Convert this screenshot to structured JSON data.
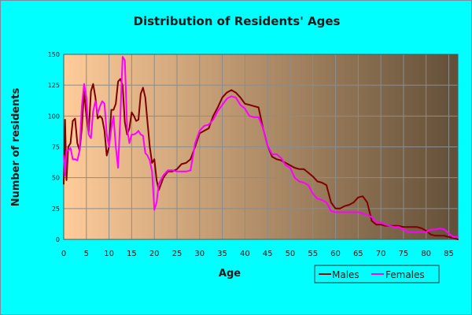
{
  "chart_data": {
    "type": "line",
    "title": "Distribution of Residents' Ages",
    "xlabel": "Age",
    "ylabel": "Number of residents",
    "xlim": [
      0,
      87
    ],
    "ylim": [
      0,
      150
    ],
    "x_ticks": [
      0,
      5,
      10,
      15,
      20,
      25,
      30,
      35,
      40,
      45,
      50,
      55,
      60,
      65,
      70,
      75,
      80,
      85
    ],
    "y_ticks": [
      0,
      25,
      50,
      75,
      100,
      125,
      150
    ],
    "grid": true,
    "legend_position": "bottom-right",
    "background_gradient": [
      "#ffcc99",
      "#624f38"
    ],
    "series": [
      {
        "name": "Males",
        "color": "#800000",
        "points": [
          [
            0,
            45
          ],
          [
            0.3,
            97
          ],
          [
            0.6,
            48
          ],
          [
            1,
            75
          ],
          [
            1.5,
            78
          ],
          [
            2,
            96
          ],
          [
            2.5,
            98
          ],
          [
            3,
            78
          ],
          [
            3.5,
            72
          ],
          [
            4,
            90
          ],
          [
            4.5,
            120
          ],
          [
            5,
            100
          ],
          [
            5.5,
            86
          ],
          [
            6,
            120
          ],
          [
            6.5,
            126
          ],
          [
            7,
            115
          ],
          [
            7.5,
            98
          ],
          [
            8,
            100
          ],
          [
            8.5,
            98
          ],
          [
            9,
            88
          ],
          [
            9.5,
            68
          ],
          [
            10,
            75
          ],
          [
            10.5,
            105
          ],
          [
            11,
            105
          ],
          [
            11.5,
            110
          ],
          [
            12,
            128
          ],
          [
            12.5,
            130
          ],
          [
            13,
            125
          ],
          [
            13.5,
            95
          ],
          [
            14,
            85
          ],
          [
            14.5,
            90
          ],
          [
            15,
            103
          ],
          [
            15.5,
            100
          ],
          [
            16,
            96
          ],
          [
            16.5,
            97
          ],
          [
            17,
            118
          ],
          [
            17.5,
            123
          ],
          [
            18,
            115
          ],
          [
            18.5,
            95
          ],
          [
            19,
            75
          ],
          [
            19.5,
            62
          ],
          [
            20,
            65
          ],
          [
            20.5,
            48
          ],
          [
            21,
            40
          ],
          [
            22,
            50
          ],
          [
            23,
            55
          ],
          [
            24,
            55
          ],
          [
            25,
            57
          ],
          [
            26,
            61
          ],
          [
            27,
            62
          ],
          [
            28,
            65
          ],
          [
            29,
            75
          ],
          [
            30,
            86
          ],
          [
            31,
            88
          ],
          [
            32,
            90
          ],
          [
            33,
            100
          ],
          [
            34,
            107
          ],
          [
            35,
            115
          ],
          [
            36,
            119
          ],
          [
            37,
            121
          ],
          [
            38,
            119
          ],
          [
            39,
            115
          ],
          [
            40,
            110
          ],
          [
            41,
            109
          ],
          [
            42,
            108
          ],
          [
            43,
            107
          ],
          [
            44,
            90
          ],
          [
            45,
            76
          ],
          [
            46,
            67
          ],
          [
            47,
            65
          ],
          [
            48,
            64
          ],
          [
            49,
            62
          ],
          [
            50,
            60
          ],
          [
            51,
            58
          ],
          [
            52,
            57
          ],
          [
            53,
            57
          ],
          [
            54,
            54
          ],
          [
            55,
            51
          ],
          [
            56,
            47
          ],
          [
            57,
            46
          ],
          [
            58,
            44
          ],
          [
            59,
            30
          ],
          [
            60,
            25
          ],
          [
            61,
            25
          ],
          [
            62,
            27
          ],
          [
            63,
            28
          ],
          [
            64,
            30
          ],
          [
            65,
            34
          ],
          [
            66,
            35
          ],
          [
            67,
            30
          ],
          [
            68,
            15
          ],
          [
            69,
            12
          ],
          [
            70,
            12
          ],
          [
            71,
            11
          ],
          [
            72,
            11
          ],
          [
            73,
            11
          ],
          [
            74,
            11
          ],
          [
            75,
            10
          ],
          [
            76,
            10
          ],
          [
            77,
            10
          ],
          [
            78,
            10
          ],
          [
            79,
            9
          ],
          [
            80,
            7
          ],
          [
            81,
            4
          ],
          [
            82,
            3
          ],
          [
            83,
            3
          ],
          [
            84,
            3
          ],
          [
            85,
            2
          ],
          [
            86,
            1
          ],
          [
            87,
            0
          ]
        ]
      },
      {
        "name": "Females",
        "color": "#ff00ff",
        "points": [
          [
            0,
            68
          ],
          [
            0.3,
            52
          ],
          [
            0.6,
            72
          ],
          [
            1,
            72
          ],
          [
            1.5,
            74
          ],
          [
            2,
            65
          ],
          [
            2.5,
            65
          ],
          [
            3,
            64
          ],
          [
            3.5,
            72
          ],
          [
            4,
            108
          ],
          [
            4.5,
            126
          ],
          [
            5,
            115
          ],
          [
            5.5,
            85
          ],
          [
            6,
            82
          ],
          [
            6.5,
            104
          ],
          [
            7,
            112
          ],
          [
            7.5,
            102
          ],
          [
            8,
            108
          ],
          [
            8.5,
            112
          ],
          [
            9,
            110
          ],
          [
            9.5,
            85
          ],
          [
            10,
            75
          ],
          [
            10.5,
            90
          ],
          [
            11,
            100
          ],
          [
            11.5,
            75
          ],
          [
            12,
            58
          ],
          [
            12.5,
            100
          ],
          [
            13,
            148
          ],
          [
            13.5,
            145
          ],
          [
            14,
            90
          ],
          [
            14.5,
            78
          ],
          [
            15,
            85
          ],
          [
            15.5,
            85
          ],
          [
            16,
            86
          ],
          [
            16.5,
            88
          ],
          [
            17,
            85
          ],
          [
            17.5,
            84
          ],
          [
            18,
            70
          ],
          [
            18.5,
            68
          ],
          [
            19,
            64
          ],
          [
            19.5,
            55
          ],
          [
            20,
            24
          ],
          [
            20.5,
            30
          ],
          [
            21,
            45
          ],
          [
            22,
            52
          ],
          [
            23,
            56
          ],
          [
            24,
            56
          ],
          [
            25,
            55
          ],
          [
            26,
            55
          ],
          [
            27,
            55
          ],
          [
            28,
            56
          ],
          [
            29,
            78
          ],
          [
            30,
            88
          ],
          [
            31,
            92
          ],
          [
            32,
            93
          ],
          [
            33,
            97
          ],
          [
            34,
            104
          ],
          [
            35,
            109
          ],
          [
            36,
            114
          ],
          [
            37,
            116
          ],
          [
            38,
            115
          ],
          [
            39,
            109
          ],
          [
            40,
            106
          ],
          [
            41,
            100
          ],
          [
            42,
            99
          ],
          [
            43,
            99
          ],
          [
            44,
            90
          ],
          [
            45,
            76
          ],
          [
            46,
            69
          ],
          [
            47,
            69
          ],
          [
            48,
            66
          ],
          [
            49,
            60
          ],
          [
            50,
            58
          ],
          [
            51,
            50
          ],
          [
            52,
            47
          ],
          [
            53,
            46
          ],
          [
            54,
            44
          ],
          [
            55,
            37
          ],
          [
            56,
            33
          ],
          [
            57,
            32
          ],
          [
            58,
            30
          ],
          [
            59,
            23
          ],
          [
            60,
            22
          ],
          [
            61,
            22
          ],
          [
            62,
            22
          ],
          [
            63,
            22
          ],
          [
            64,
            22
          ],
          [
            65,
            22
          ],
          [
            66,
            21
          ],
          [
            67,
            20
          ],
          [
            68,
            18
          ],
          [
            69,
            14
          ],
          [
            70,
            14
          ],
          [
            71,
            12
          ],
          [
            72,
            11
          ],
          [
            73,
            10
          ],
          [
            74,
            10
          ],
          [
            75,
            8
          ],
          [
            76,
            6
          ],
          [
            77,
            6
          ],
          [
            78,
            6
          ],
          [
            79,
            6
          ],
          [
            80,
            6
          ],
          [
            81,
            8
          ],
          [
            82,
            8
          ],
          [
            83,
            9
          ],
          [
            84,
            8
          ],
          [
            85,
            5
          ],
          [
            86,
            2
          ],
          [
            87,
            2
          ]
        ]
      }
    ]
  }
}
